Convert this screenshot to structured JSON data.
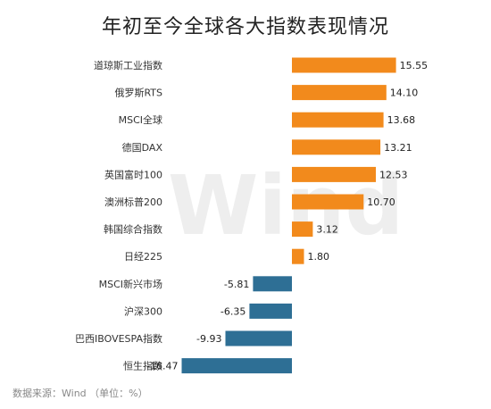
{
  "chart_data": {
    "type": "bar",
    "orientation": "horizontal",
    "title": "年初至今全球各大指数表现情况",
    "categories": [
      "道琼斯工业指数",
      "俄罗斯RTS",
      "MSCI全球",
      "德国DAX",
      "英国富时100",
      "澳洲标普200",
      "韩国综合指数",
      "日经225",
      "MSCI新兴市场",
      "沪深300",
      "巴西IBOVESPA指数",
      "恒生指数"
    ],
    "values": [
      15.55,
      14.1,
      13.68,
      13.21,
      12.53,
      10.7,
      3.12,
      1.8,
      -5.81,
      -6.35,
      -9.93,
      -16.47
    ],
    "value_labels": [
      "15.55",
      "14.10",
      "13.68",
      "13.21",
      "12.53",
      "10.70",
      "3.12",
      "1.80",
      "-5.81",
      "-6.35",
      "-9.93",
      "-16.47"
    ],
    "xlim": [
      -16.47,
      15.55
    ],
    "grid": false,
    "colors": {
      "positive": "#f28a1c",
      "negative": "#2e6f95"
    }
  },
  "footer": {
    "source": "数据来源：Wind （单位：%）"
  },
  "watermark": "Wind"
}
